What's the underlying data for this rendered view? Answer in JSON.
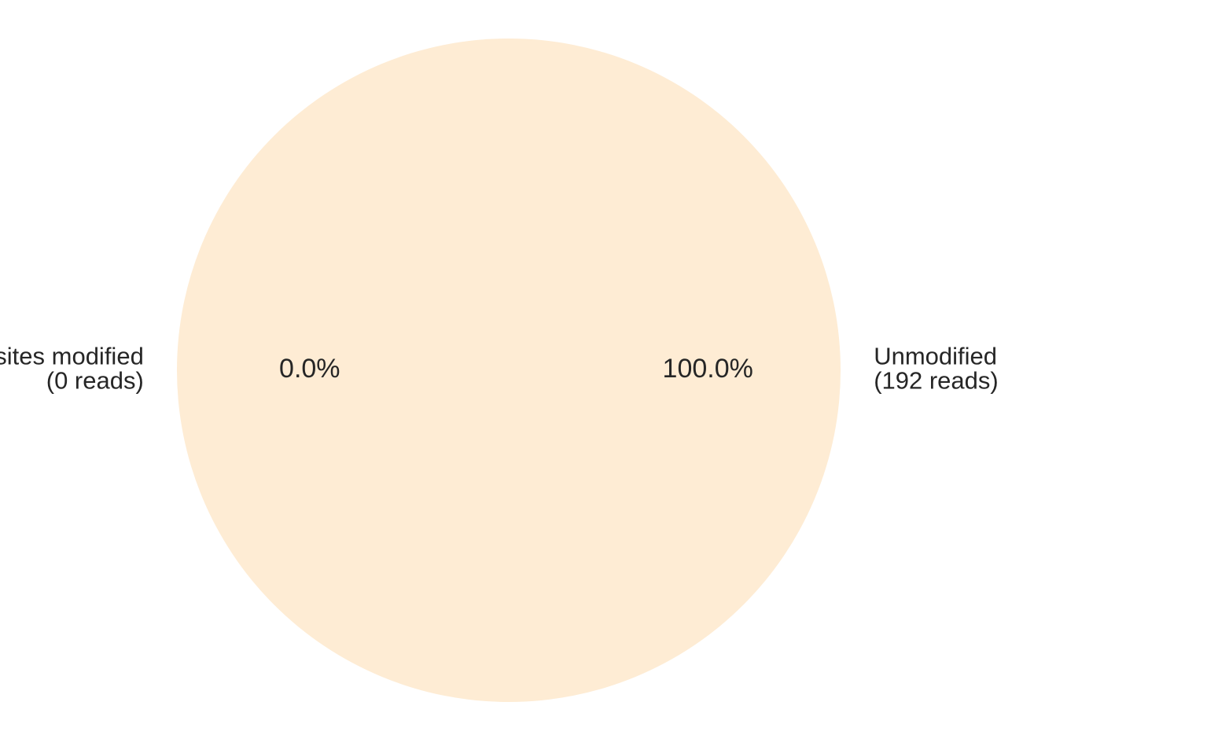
{
  "chart_data": {
    "type": "pie",
    "title": "",
    "slices": [
      {
        "label_lines": [
          "Unmodified",
          "(192 reads)"
        ],
        "value": 192,
        "percent_label": "100.0%",
        "color": "#feecd4"
      },
      {
        "label_lines": [
          "Potential splice sites modified",
          "(0 reads)"
        ],
        "value": 0,
        "percent_label": "0.0%",
        "color": "#f6b26b"
      }
    ],
    "legend": false
  }
}
